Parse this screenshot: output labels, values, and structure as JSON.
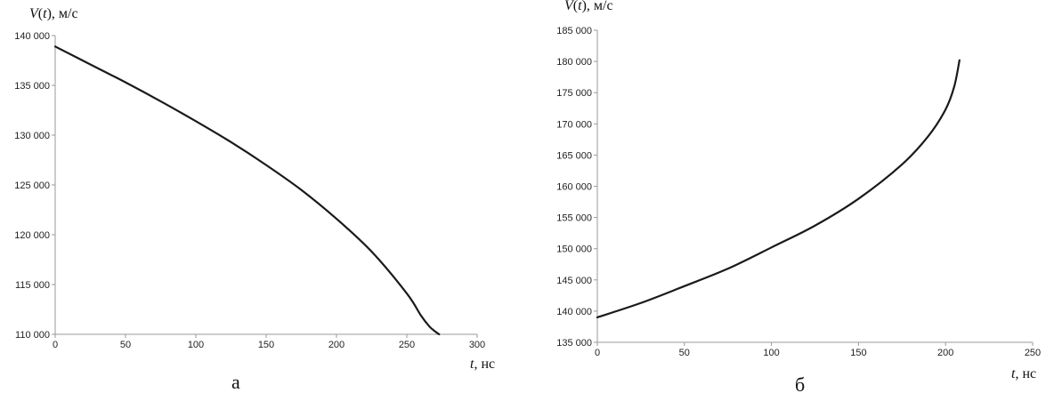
{
  "chart_data": [
    {
      "type": "line",
      "panel_label": "а",
      "ylabel": "V(t), м/с",
      "ylabel_var": "V",
      "ylabel_arg": "t",
      "ylabel_unit": ", м/с",
      "xlabel": "t, нс",
      "xlabel_var": "t",
      "xlabel_unit": ", нс",
      "xlim": [
        0,
        300
      ],
      "ylim": [
        110000,
        140000
      ],
      "xticks": [
        0,
        50,
        100,
        150,
        200,
        250,
        300
      ],
      "xtick_labels": [
        "0",
        "50",
        "100",
        "150",
        "200",
        "250",
        "300"
      ],
      "yticks": [
        110000,
        115000,
        120000,
        125000,
        130000,
        135000,
        140000
      ],
      "ytick_labels": [
        "110 000",
        "115 000",
        "120 000",
        "125 000",
        "130 000",
        "135 000",
        "140 000"
      ],
      "series": [
        {
          "x": [
            0,
            25,
            50,
            75,
            100,
            125,
            150,
            175,
            200,
            225,
            250,
            260,
            266,
            270,
            273
          ],
          "y": [
            138900,
            137100,
            135300,
            133400,
            131400,
            129300,
            127000,
            124500,
            121600,
            118300,
            114100,
            111900,
            110800,
            110300,
            110000
          ]
        }
      ]
    },
    {
      "type": "line",
      "panel_label": "б",
      "ylabel": "V(t), м/с",
      "ylabel_var": "V",
      "ylabel_arg": "t",
      "ylabel_unit": ", м/с",
      "xlabel": "t, нс",
      "xlabel_var": "t",
      "xlabel_unit": ", нс",
      "xlim": [
        0,
        250
      ],
      "ylim": [
        135000,
        185000
      ],
      "xticks": [
        0,
        50,
        100,
        150,
        200,
        250
      ],
      "xtick_labels": [
        "0",
        "50",
        "100",
        "150",
        "200",
        "250"
      ],
      "yticks": [
        135000,
        140000,
        145000,
        150000,
        155000,
        160000,
        165000,
        170000,
        175000,
        180000,
        185000
      ],
      "ytick_labels": [
        "135 000",
        "140 000",
        "145 000",
        "150 000",
        "155 000",
        "160 000",
        "165 000",
        "170 000",
        "175 000",
        "180 000",
        "185 000"
      ],
      "series": [
        {
          "x": [
            0,
            25,
            50,
            75,
            100,
            125,
            150,
            175,
            190,
            200,
            205,
            208
          ],
          "y": [
            139000,
            141300,
            144000,
            146800,
            150200,
            153700,
            158000,
            163500,
            168000,
            172300,
            176000,
            180200
          ]
        }
      ]
    }
  ]
}
